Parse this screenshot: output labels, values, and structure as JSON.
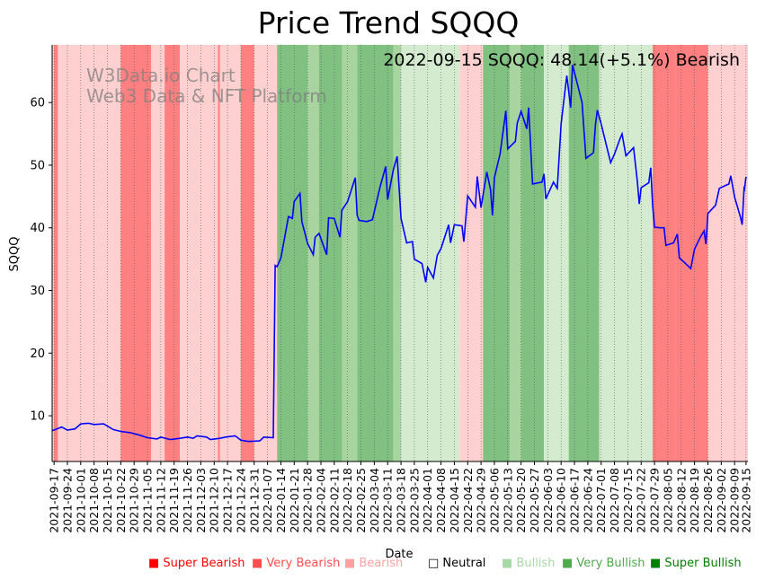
{
  "chart_data": {
    "type": "line",
    "title": "Price Trend SQQQ",
    "subtitle": "2022-09-15 SQQQ: 48.14(+5.1%) Bearish",
    "watermark": [
      "W3Data.io Chart",
      "Web3 Data & NFT Platform"
    ],
    "xlabel": "Date",
    "ylabel": "SQQQ",
    "ylim": [
      2.7,
      69.2
    ],
    "yticks": [
      10,
      20,
      30,
      40,
      50,
      60
    ],
    "x_range": [
      "2021-09-16",
      "2022-09-16"
    ],
    "xticks": [
      "2021-09-17",
      "2021-09-24",
      "2021-10-01",
      "2021-10-08",
      "2021-10-15",
      "2021-10-22",
      "2021-10-29",
      "2021-11-05",
      "2021-11-12",
      "2021-11-19",
      "2021-11-26",
      "2021-12-03",
      "2021-12-10",
      "2021-12-17",
      "2021-12-24",
      "2021-12-31",
      "2022-01-07",
      "2022-01-14",
      "2022-01-21",
      "2022-01-28",
      "2022-02-04",
      "2022-02-11",
      "2022-02-18",
      "2022-02-25",
      "2022-03-04",
      "2022-03-11",
      "2022-03-18",
      "2022-03-25",
      "2022-04-01",
      "2022-04-08",
      "2022-04-15",
      "2022-04-22",
      "2022-04-29",
      "2022-05-06",
      "2022-05-13",
      "2022-05-20",
      "2022-05-27",
      "2022-06-03",
      "2022-06-10",
      "2022-06-17",
      "2022-06-24",
      "2022-07-01",
      "2022-07-08",
      "2022-07-15",
      "2022-07-22",
      "2022-07-29",
      "2022-08-05",
      "2022-08-12",
      "2022-08-19",
      "2022-08-26",
      "2022-09-02",
      "2022-09-09",
      "2022-09-15"
    ],
    "series": [
      {
        "name": "SQQQ",
        "color": "#0000ff",
        "points": [
          [
            "2021-09-16",
            7.6
          ],
          [
            "2021-09-21",
            8.2
          ],
          [
            "2021-09-24",
            7.7
          ],
          [
            "2021-09-28",
            7.9
          ],
          [
            "2021-10-01",
            8.7
          ],
          [
            "2021-10-05",
            8.8
          ],
          [
            "2021-10-08",
            8.6
          ],
          [
            "2021-10-13",
            8.7
          ],
          [
            "2021-10-18",
            7.8
          ],
          [
            "2021-10-22",
            7.5
          ],
          [
            "2021-10-27",
            7.3
          ],
          [
            "2021-11-01",
            6.9
          ],
          [
            "2021-11-05",
            6.5
          ],
          [
            "2021-11-10",
            6.3
          ],
          [
            "2021-11-12",
            6.6
          ],
          [
            "2021-11-17",
            6.2
          ],
          [
            "2021-11-22",
            6.4
          ],
          [
            "2021-11-26",
            6.6
          ],
          [
            "2021-11-29",
            6.4
          ],
          [
            "2021-12-01",
            6.8
          ],
          [
            "2021-12-06",
            6.6
          ],
          [
            "2021-12-08",
            6.2
          ],
          [
            "2021-12-13",
            6.4
          ],
          [
            "2021-12-16",
            6.6
          ],
          [
            "2021-12-21",
            6.8
          ],
          [
            "2021-12-24",
            6.1
          ],
          [
            "2021-12-28",
            5.9
          ],
          [
            "2022-01-03",
            6.0
          ],
          [
            "2022-01-05",
            6.6
          ],
          [
            "2022-01-10",
            6.5
          ],
          [
            "2022-01-11",
            34.0
          ],
          [
            "2022-01-12",
            33.8
          ],
          [
            "2022-01-14",
            35.2
          ],
          [
            "2022-01-18",
            41.8
          ],
          [
            "2022-01-20",
            41.5
          ],
          [
            "2022-01-21",
            44.2
          ],
          [
            "2022-01-24",
            45.5
          ],
          [
            "2022-01-25",
            41.0
          ],
          [
            "2022-01-28",
            37.5
          ],
          [
            "2022-01-31",
            35.7
          ],
          [
            "2022-02-01",
            38.5
          ],
          [
            "2022-02-03",
            39.1
          ],
          [
            "2022-02-07",
            35.7
          ],
          [
            "2022-02-08",
            41.6
          ],
          [
            "2022-02-11",
            41.5
          ],
          [
            "2022-02-14",
            38.5
          ],
          [
            "2022-02-15",
            42.8
          ],
          [
            "2022-02-18",
            44.2
          ],
          [
            "2022-02-22",
            48.0
          ],
          [
            "2022-02-23",
            42.0
          ],
          [
            "2022-02-24",
            41.2
          ],
          [
            "2022-02-28",
            41.0
          ],
          [
            "2022-03-03",
            41.3
          ],
          [
            "2022-03-07",
            46.5
          ],
          [
            "2022-03-10",
            49.8
          ],
          [
            "2022-03-11",
            44.5
          ],
          [
            "2022-03-14",
            49.3
          ],
          [
            "2022-03-16",
            51.4
          ],
          [
            "2022-03-18",
            41.5
          ],
          [
            "2022-03-21",
            37.6
          ],
          [
            "2022-03-24",
            37.8
          ],
          [
            "2022-03-25",
            35.0
          ],
          [
            "2022-03-29",
            34.3
          ],
          [
            "2022-03-31",
            31.3
          ],
          [
            "2022-04-01",
            33.7
          ],
          [
            "2022-04-04",
            32.0
          ],
          [
            "2022-04-06",
            35.6
          ],
          [
            "2022-04-08",
            36.7
          ],
          [
            "2022-04-12",
            40.5
          ],
          [
            "2022-04-13",
            37.6
          ],
          [
            "2022-04-15",
            40.5
          ],
          [
            "2022-04-19",
            40.3
          ],
          [
            "2022-04-20",
            37.8
          ],
          [
            "2022-04-22",
            45.1
          ],
          [
            "2022-04-26",
            43.3
          ],
          [
            "2022-04-27",
            48.2
          ],
          [
            "2022-04-29",
            43.2
          ],
          [
            "2022-05-02",
            48.9
          ],
          [
            "2022-05-04",
            46.1
          ],
          [
            "2022-05-05",
            42.0
          ],
          [
            "2022-05-06",
            48.0
          ],
          [
            "2022-05-09",
            51.8
          ],
          [
            "2022-05-12",
            58.7
          ],
          [
            "2022-05-13",
            52.6
          ],
          [
            "2022-05-17",
            53.8
          ],
          [
            "2022-05-18",
            56.7
          ],
          [
            "2022-05-20",
            58.6
          ],
          [
            "2022-05-23",
            55.8
          ],
          [
            "2022-05-24",
            59.2
          ],
          [
            "2022-05-26",
            47.0
          ],
          [
            "2022-05-31",
            47.3
          ],
          [
            "2022-06-01",
            48.6
          ],
          [
            "2022-06-02",
            44.6
          ],
          [
            "2022-06-06",
            47.3
          ],
          [
            "2022-06-08",
            46.3
          ],
          [
            "2022-06-10",
            56.6
          ],
          [
            "2022-06-13",
            64.3
          ],
          [
            "2022-06-15",
            59.2
          ],
          [
            "2022-06-16",
            66.0
          ],
          [
            "2022-06-21",
            60.0
          ],
          [
            "2022-06-23",
            51.1
          ],
          [
            "2022-06-27",
            52.0
          ],
          [
            "2022-06-28",
            56.5
          ],
          [
            "2022-06-29",
            58.8
          ],
          [
            "2022-07-01",
            56.6
          ],
          [
            "2022-07-06",
            50.4
          ],
          [
            "2022-07-08",
            51.8
          ],
          [
            "2022-07-11",
            54.3
          ],
          [
            "2022-07-12",
            55.0
          ],
          [
            "2022-07-14",
            51.5
          ],
          [
            "2022-07-18",
            52.8
          ],
          [
            "2022-07-20",
            47.4
          ],
          [
            "2022-07-21",
            43.8
          ],
          [
            "2022-07-22",
            46.4
          ],
          [
            "2022-07-26",
            47.2
          ],
          [
            "2022-07-27",
            49.6
          ],
          [
            "2022-07-28",
            43.6
          ],
          [
            "2022-07-29",
            40.1
          ],
          [
            "2022-08-01",
            40.0
          ],
          [
            "2022-08-03",
            40.0
          ],
          [
            "2022-08-04",
            37.2
          ],
          [
            "2022-08-08",
            37.6
          ],
          [
            "2022-08-10",
            39.0
          ],
          [
            "2022-08-11",
            35.2
          ],
          [
            "2022-08-15",
            34.1
          ],
          [
            "2022-08-17",
            33.5
          ],
          [
            "2022-08-19",
            36.6
          ],
          [
            "2022-08-22",
            38.5
          ],
          [
            "2022-08-24",
            39.5
          ],
          [
            "2022-08-25",
            37.4
          ],
          [
            "2022-08-26",
            42.3
          ],
          [
            "2022-08-30",
            43.6
          ],
          [
            "2022-09-01",
            46.3
          ],
          [
            "2022-09-06",
            47.0
          ],
          [
            "2022-09-07",
            48.3
          ],
          [
            "2022-09-09",
            44.9
          ],
          [
            "2022-09-12",
            41.8
          ],
          [
            "2022-09-13",
            40.5
          ],
          [
            "2022-09-14",
            46.6
          ],
          [
            "2022-09-14",
            45.8
          ],
          [
            "2022-09-15",
            48.14
          ]
        ]
      }
    ],
    "regions": [
      {
        "from": "2021-09-16",
        "to": "2021-10-22",
        "state": "Bearish"
      },
      {
        "from": "2021-09-17",
        "to": "2021-09-19",
        "state": "Very Bearish"
      },
      {
        "from": "2021-10-22",
        "to": "2021-11-07",
        "state": "Very Bearish"
      },
      {
        "from": "2021-11-07",
        "to": "2021-11-14",
        "state": "Bearish"
      },
      {
        "from": "2021-11-14",
        "to": "2021-11-22",
        "state": "Very Bearish"
      },
      {
        "from": "2021-11-22",
        "to": "2021-12-03",
        "state": "Bearish"
      },
      {
        "from": "2021-12-03",
        "to": "2021-12-24",
        "state": "Bearish"
      },
      {
        "from": "2021-12-12",
        "to": "2021-12-13",
        "state": "Very Bearish"
      },
      {
        "from": "2021-12-24",
        "to": "2021-12-31",
        "state": "Very Bearish"
      },
      {
        "from": "2021-12-31",
        "to": "2022-01-12",
        "state": "Bearish"
      },
      {
        "from": "2022-01-12",
        "to": "2022-01-28",
        "state": "Very Bullish"
      },
      {
        "from": "2022-01-28",
        "to": "2022-02-18",
        "state": "Bullish"
      },
      {
        "from": "2022-02-03",
        "to": "2022-02-15",
        "state": "Very Bullish"
      },
      {
        "from": "2022-02-18",
        "to": "2022-02-23",
        "state": "Bullish"
      },
      {
        "from": "2022-02-23",
        "to": "2022-03-14",
        "state": "Very Bullish"
      },
      {
        "from": "2022-03-14",
        "to": "2022-03-18",
        "state": "Bullish"
      },
      {
        "from": "2022-03-18",
        "to": "2022-04-18",
        "state": "Bullish-light"
      },
      {
        "from": "2022-04-18",
        "to": "2022-04-30",
        "state": "Bearish"
      },
      {
        "from": "2022-04-30",
        "to": "2022-05-14",
        "state": "Very Bullish"
      },
      {
        "from": "2022-05-14",
        "to": "2022-05-20",
        "state": "Bullish"
      },
      {
        "from": "2022-05-20",
        "to": "2022-06-01",
        "state": "Very Bullish"
      },
      {
        "from": "2022-06-01",
        "to": "2022-06-14",
        "state": "Bullish-light"
      },
      {
        "from": "2022-06-14",
        "to": "2022-06-30",
        "state": "Very Bullish"
      },
      {
        "from": "2022-06-30",
        "to": "2022-07-28",
        "state": "Bullish-light"
      },
      {
        "from": "2022-07-28",
        "to": "2022-08-09",
        "state": "Very Bearish"
      },
      {
        "from": "2022-08-09",
        "to": "2022-08-26",
        "state": "Very Bearish"
      },
      {
        "from": "2022-08-26",
        "to": "2022-09-16",
        "state": "Bearish"
      }
    ],
    "legend": [
      {
        "label": "Super Bearish",
        "marker": "■",
        "color": "#ff0000"
      },
      {
        "label": "Very Bearish",
        "marker": "■",
        "color": "#ff4d4d"
      },
      {
        "label": "Bearish",
        "marker": "■",
        "color": "#ffa0a0"
      },
      {
        "label": "Neutral",
        "marker": "□",
        "color": "#000000"
      },
      {
        "label": "Bullish",
        "marker": "■",
        "color": "#a8d8a8"
      },
      {
        "label": "Very Bullish",
        "marker": "■",
        "color": "#4daa4d"
      },
      {
        "label": "Super Bullish",
        "marker": "■",
        "color": "#008000"
      }
    ]
  }
}
